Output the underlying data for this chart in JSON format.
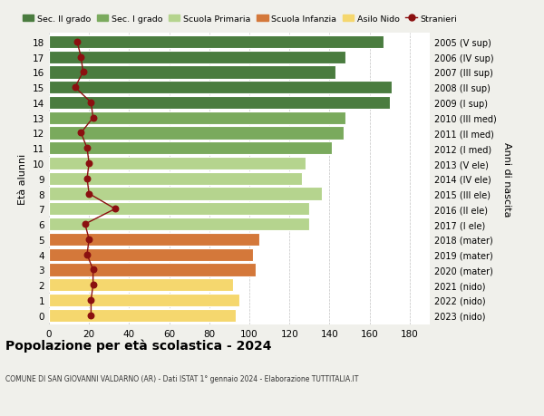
{
  "ages": [
    18,
    17,
    16,
    15,
    14,
    13,
    12,
    11,
    10,
    9,
    8,
    7,
    6,
    5,
    4,
    3,
    2,
    1,
    0
  ],
  "right_labels": [
    "2005 (V sup)",
    "2006 (IV sup)",
    "2007 (III sup)",
    "2008 (II sup)",
    "2009 (I sup)",
    "2010 (III med)",
    "2011 (II med)",
    "2012 (I med)",
    "2013 (V ele)",
    "2014 (IV ele)",
    "2015 (III ele)",
    "2016 (II ele)",
    "2017 (I ele)",
    "2018 (mater)",
    "2019 (mater)",
    "2020 (mater)",
    "2021 (nido)",
    "2022 (nido)",
    "2023 (nido)"
  ],
  "bar_values": [
    167,
    148,
    143,
    171,
    170,
    148,
    147,
    141,
    128,
    126,
    136,
    130,
    130,
    105,
    102,
    103,
    92,
    95,
    93
  ],
  "bar_colors": [
    "#4a7c3f",
    "#4a7c3f",
    "#4a7c3f",
    "#4a7c3f",
    "#4a7c3f",
    "#7aaa5d",
    "#7aaa5d",
    "#7aaa5d",
    "#b5d48e",
    "#b5d48e",
    "#b5d48e",
    "#b5d48e",
    "#b5d48e",
    "#d4783a",
    "#d4783a",
    "#d4783a",
    "#f5d76e",
    "#f5d76e",
    "#f5d76e"
  ],
  "stranieri_values": [
    14,
    16,
    17,
    13,
    21,
    22,
    16,
    19,
    20,
    19,
    20,
    33,
    18,
    20,
    19,
    22,
    22,
    21,
    21
  ],
  "legend_labels": [
    "Sec. II grado",
    "Sec. I grado",
    "Scuola Primaria",
    "Scuola Infanzia",
    "Asilo Nido",
    "Stranieri"
  ],
  "legend_colors": [
    "#4a7c3f",
    "#7aaa5d",
    "#b5d48e",
    "#d4783a",
    "#f5d76e",
    "#8b1010"
  ],
  "ylabel_left": "Età alunni",
  "ylabel_right": "Anni di nascita",
  "title": "Popolazione per età scolastica - 2024",
  "subtitle": "COMUNE DI SAN GIOVANNI VALDARNO (AR) - Dati ISTAT 1° gennaio 2024 - Elaborazione TUTTITALIA.IT",
  "xlim": [
    0,
    190
  ],
  "xticks": [
    0,
    20,
    40,
    60,
    80,
    100,
    120,
    140,
    160,
    180
  ],
  "bg_color": "#f0f0eb",
  "plot_bg_color": "#ffffff"
}
